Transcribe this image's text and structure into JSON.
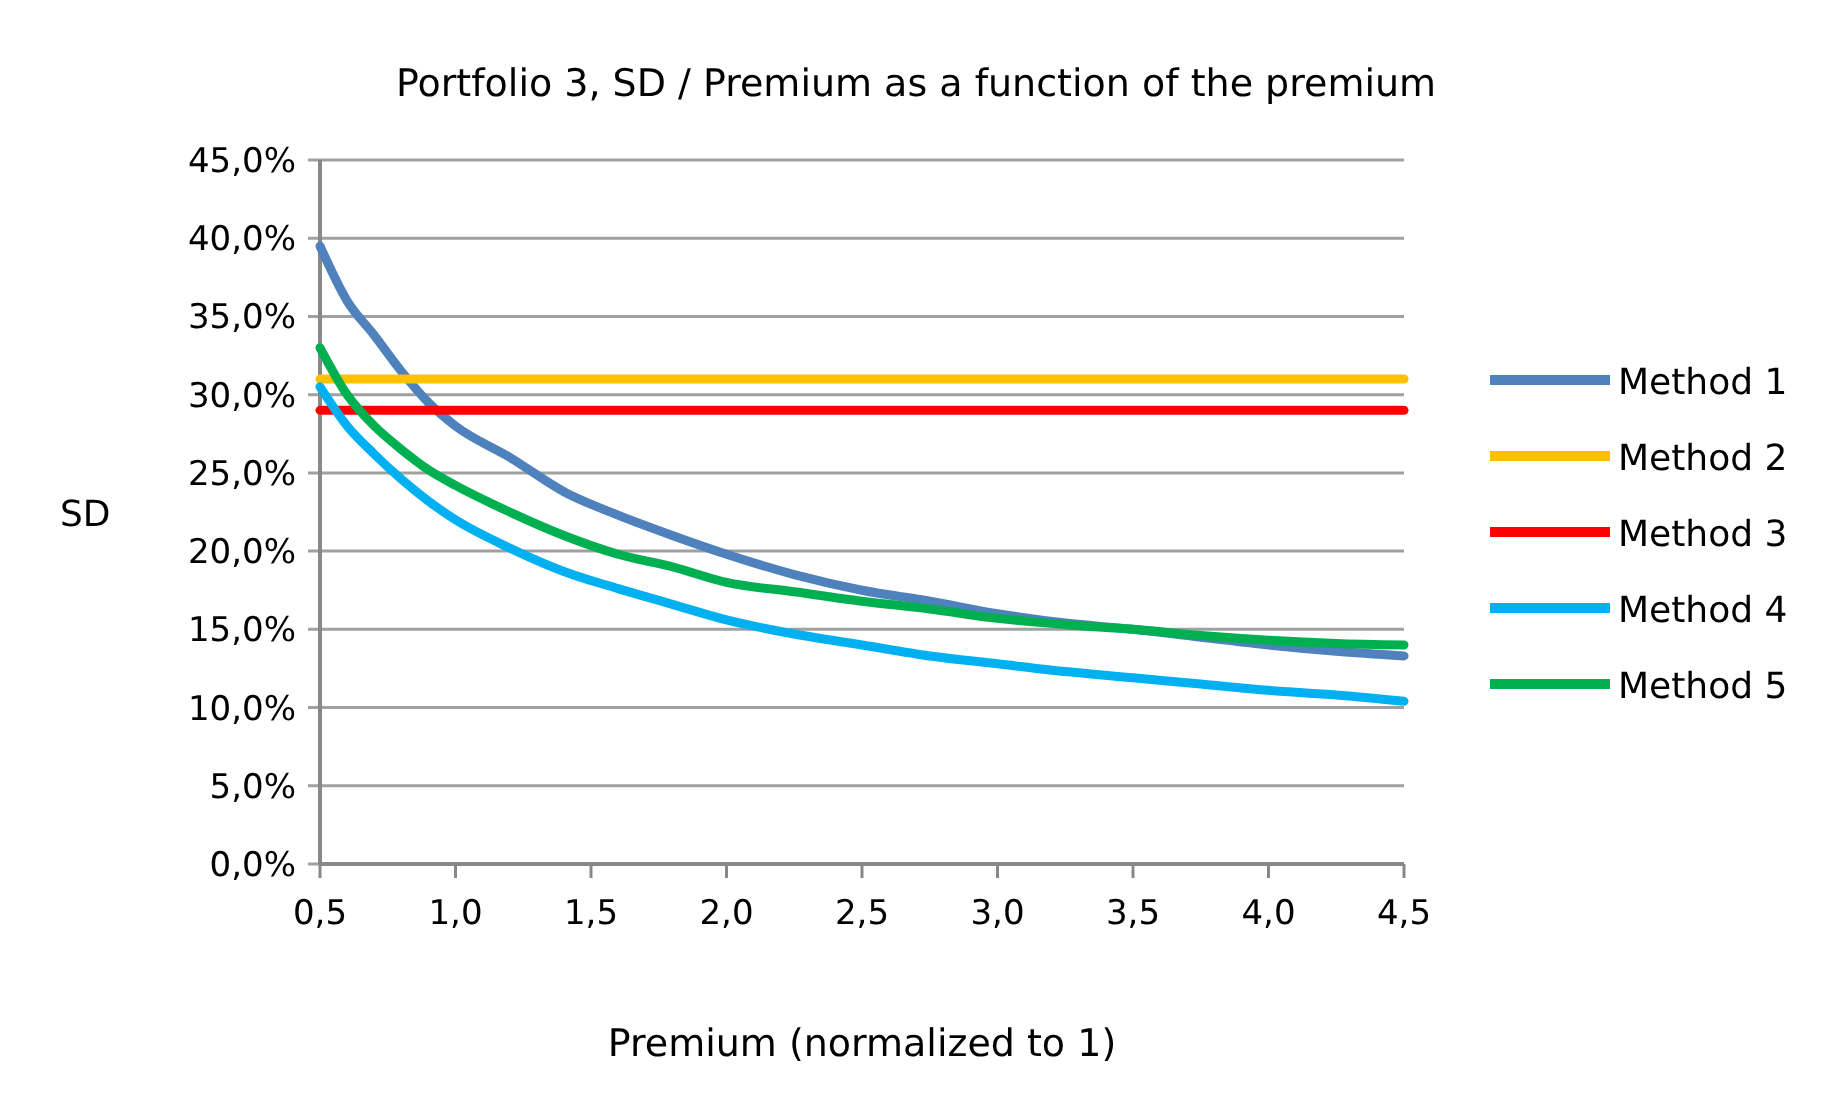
{
  "chart_data": {
    "type": "line",
    "title": "Portfolio 3, SD / Premium as a function of the premium",
    "xlabel": "Premium (normalized to 1)",
    "ylabel": "SD",
    "x": [
      0.5,
      0.6,
      0.7,
      0.8,
      0.9,
      1.0,
      1.2,
      1.4,
      1.6,
      1.8,
      2.0,
      2.25,
      2.5,
      2.75,
      3.0,
      3.25,
      3.5,
      3.75,
      4.0,
      4.25,
      4.5
    ],
    "series": [
      {
        "name": "Method 1",
        "color": "#4f81bd",
        "values": [
          39.5,
          36,
          33.8,
          31.5,
          29.5,
          28,
          26,
          23.8,
          22.3,
          21,
          19.8,
          18.5,
          17.5,
          16.8,
          16,
          15.4,
          15,
          14.5,
          14,
          13.6,
          13.3
        ]
      },
      {
        "name": "Method 2",
        "color": "#ffc000",
        "values": [
          31,
          31,
          31,
          31,
          31,
          31,
          31,
          31,
          31,
          31,
          31,
          31,
          31,
          31,
          31,
          31,
          31,
          31,
          31,
          31,
          31
        ]
      },
      {
        "name": "Method 3",
        "color": "#ff0000",
        "values": [
          29,
          29,
          29,
          29,
          29,
          29,
          29,
          29,
          29,
          29,
          29,
          29,
          29,
          29,
          29,
          29,
          29,
          29,
          29,
          29,
          29
        ]
      },
      {
        "name": "Method 4",
        "color": "#00b0f0",
        "values": [
          30.5,
          28,
          26.2,
          24.6,
          23.2,
          22,
          20.2,
          18.7,
          17.6,
          16.6,
          15.6,
          14.7,
          14,
          13.3,
          12.8,
          12.3,
          11.9,
          11.5,
          11.1,
          10.8,
          10.4
        ]
      },
      {
        "name": "Method 5",
        "color": "#00b050",
        "values": [
          33,
          30,
          28,
          26.5,
          25.2,
          24.2,
          22.5,
          21,
          19.8,
          19,
          18,
          17.4,
          16.8,
          16.3,
          15.7,
          15.3,
          15,
          14.6,
          14.3,
          14.1,
          14.0
        ]
      }
    ],
    "xlim": [
      0.5,
      4.5
    ],
    "xticks": [
      {
        "value": 0.5,
        "label": "0,5"
      },
      {
        "value": 1,
        "label": "1,0"
      },
      {
        "value": 1.5,
        "label": "1,5"
      },
      {
        "value": 2,
        "label": "2,0"
      },
      {
        "value": 2.5,
        "label": "2,5"
      },
      {
        "value": 3,
        "label": "3,0"
      },
      {
        "value": 3.5,
        "label": "3,5"
      },
      {
        "value": 4,
        "label": "4,0"
      },
      {
        "value": 4.5,
        "label": "4,5"
      }
    ],
    "ylim": [
      0,
      45
    ],
    "yticks": [
      {
        "value": 0,
        "label": "0,0%"
      },
      {
        "value": 5,
        "label": "5,0%"
      },
      {
        "value": 10,
        "label": "10,0%"
      },
      {
        "value": 15,
        "label": "15,0%"
      },
      {
        "value": 20,
        "label": "20,0%"
      },
      {
        "value": 25,
        "label": "25,0%"
      },
      {
        "value": 30,
        "label": "30,0%"
      },
      {
        "value": 35,
        "label": "35,0%"
      },
      {
        "value": 40,
        "label": "40,0%"
      },
      {
        "value": 45,
        "label": "45,0%"
      }
    ],
    "grid": "y",
    "legend": "right",
    "marker": "none",
    "line_style": "solid"
  }
}
